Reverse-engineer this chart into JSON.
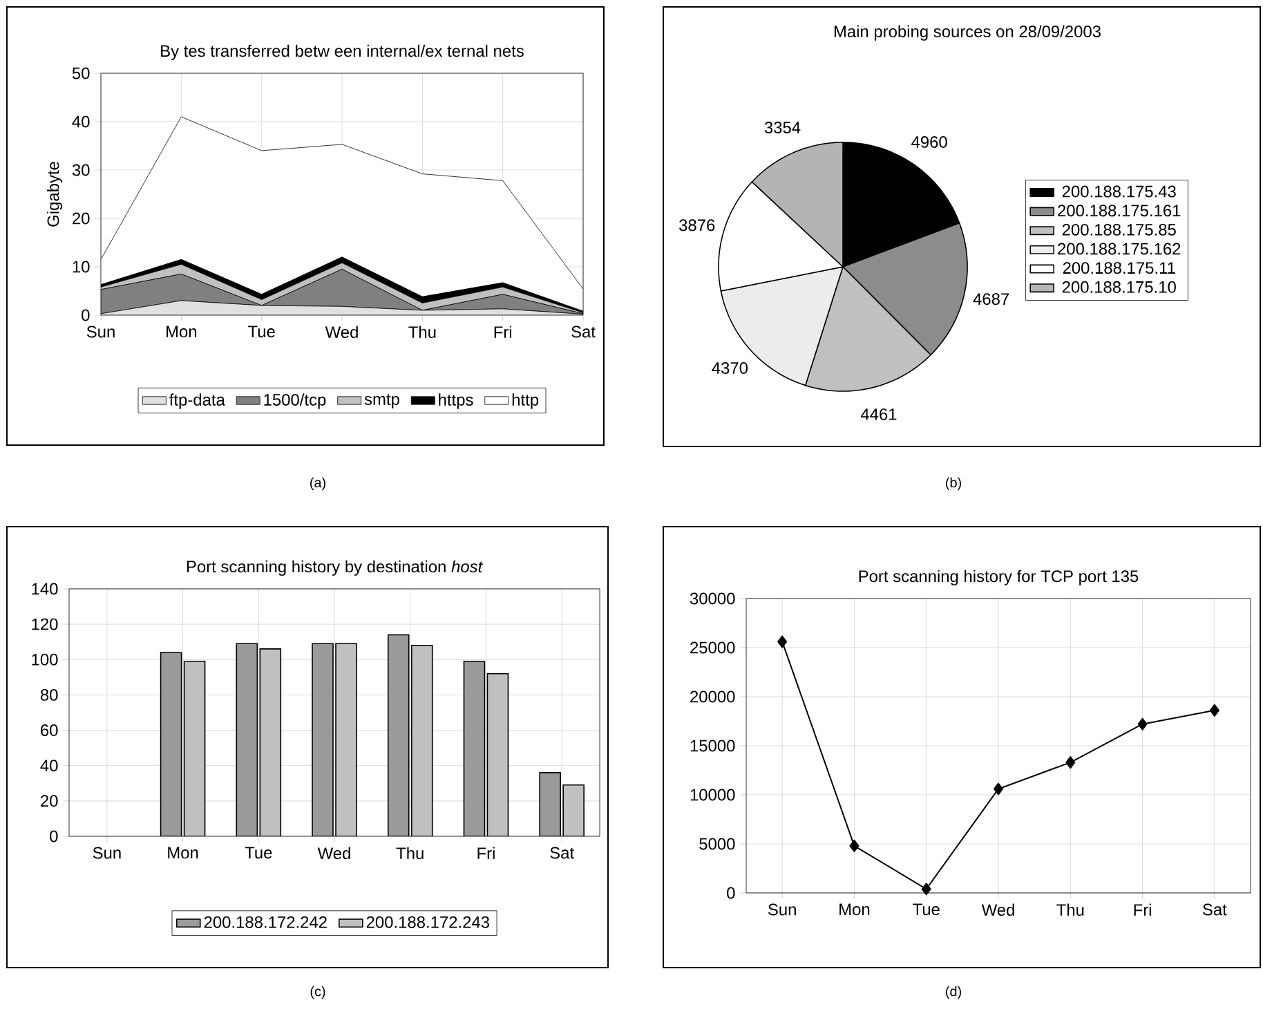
{
  "chart_data": [
    {
      "type": "area",
      "title": "By tes transferred betw een internal/ex ternal nets",
      "ylabel": "Gigabyte",
      "stacked": true,
      "categories": [
        "Sun",
        "Mon",
        "Tue",
        "Wed",
        "Thu",
        "Fri",
        "Sat"
      ],
      "series": [
        {
          "name": "ftp-data",
          "color": "#e0e0e0",
          "values": [
            0.3,
            3,
            2,
            1.8,
            1,
            1.3,
            0.2
          ]
        },
        {
          "name": "1500/tcp",
          "color": "#808080",
          "values": [
            5,
            5.5,
            0,
            7.7,
            0,
            3,
            0.1
          ]
        },
        {
          "name": "smtp",
          "color": "#c0c0c0",
          "values": [
            0.5,
            2,
            1.2,
            1.3,
            1.5,
            1.5,
            0.2
          ]
        },
        {
          "name": "https",
          "color": "#000000",
          "values": [
            0.5,
            1,
            1.1,
            1.2,
            1.3,
            0.9,
            0.3
          ]
        },
        {
          "name": "http",
          "color": "#ffffff",
          "values": [
            5.2,
            29.5,
            29.7,
            23.3,
            25.4,
            21.1,
            4.6
          ]
        }
      ],
      "ylim": [
        0,
        50
      ],
      "yticks": [
        0,
        10,
        20,
        30,
        40,
        50
      ],
      "grid": true,
      "legend": "bottom",
      "annotations": [
        "(a)"
      ]
    },
    {
      "type": "pie",
      "title": "Main probing sources on 28/09/2003",
      "categories": [
        "200.188.175.43",
        "200.188.175.161",
        "200.188.175.85",
        "200.188.175.162",
        "200.188.175.11",
        "200.188.175.10"
      ],
      "values": [
        4960,
        4687,
        4461,
        4370,
        3876,
        3354
      ],
      "colors": [
        "#000000",
        "#8c8c8c",
        "#c0c0c0",
        "#ececec",
        "#ffffff",
        "#b4b4b4"
      ],
      "data_labels": true,
      "legend": "right",
      "annotations": [
        "(b)"
      ]
    },
    {
      "type": "bar",
      "title": "Port scanning history by destination *host*",
      "categories": [
        "Sun",
        "Mon",
        "Tue",
        "Wed",
        "Thu",
        "Fri",
        "Sat"
      ],
      "series": [
        {
          "name": "200.188.172.242",
          "color": "#9a9a9a",
          "values": [
            null,
            104,
            109,
            109,
            114,
            99,
            36
          ]
        },
        {
          "name": "200.188.172.243",
          "color": "#c0c0c0",
          "values": [
            null,
            99,
            106,
            109,
            108,
            92,
            29
          ]
        }
      ],
      "ylim": [
        0,
        140
      ],
      "yticks": [
        0,
        20,
        40,
        60,
        80,
        100,
        120,
        140
      ],
      "grid": true,
      "legend": "bottom",
      "annotations": [
        "(c)"
      ]
    },
    {
      "type": "line",
      "title": "Port scanning history for TCP port 135",
      "categories": [
        "Sun",
        "Mon",
        "Tue",
        "Wed",
        "Thu",
        "Fri",
        "Sat"
      ],
      "values": [
        25600,
        4800,
        400,
        10600,
        13300,
        17200,
        18600
      ],
      "color": "#000000",
      "marker": "diamond",
      "ylim": [
        0,
        30000
      ],
      "yticks": [
        0,
        5000,
        10000,
        15000,
        20000,
        25000,
        30000
      ],
      "grid": true,
      "annotations": [
        "(d)"
      ]
    }
  ]
}
